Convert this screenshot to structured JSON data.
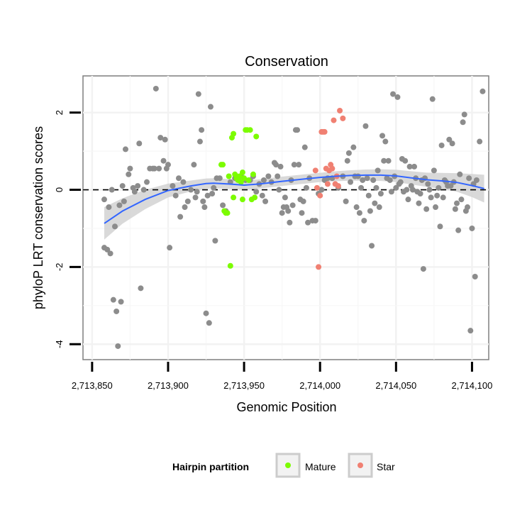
{
  "chart_data": {
    "type": "scatter",
    "title": "Conservation",
    "xlabel": "Genomic Position",
    "ylabel": "phyloP LRT conservation scores",
    "xlim": [
      2713844,
      2714111
    ],
    "ylim": [
      -4.4,
      2.95
    ],
    "xticks": [
      2713850,
      2713900,
      2713950,
      2714000,
      2714050,
      2714100
    ],
    "xtick_labels": [
      "2,713,850",
      "2,713,900",
      "2,713,950",
      "2,714,000",
      "2,714,050",
      "2,714,100"
    ],
    "yticks": [
      -4,
      -2,
      0,
      2
    ],
    "ytick_labels": [
      "-4",
      "-2",
      "0",
      "2"
    ],
    "reference_line": {
      "y": 0,
      "style": "dashed"
    },
    "legend": {
      "title": "Hairpin partition",
      "position": "bottom",
      "entries": [
        {
          "label": "Mature",
          "color": "#7CFC00"
        },
        {
          "label": "Star",
          "color": "#F08072"
        }
      ]
    },
    "colors": {
      "other": "#8c8c8c",
      "mature": "#7CFC00",
      "star": "#F08072",
      "smooth": "#3366FF",
      "band": "#d2d2d2"
    },
    "series": [
      {
        "name": "Other",
        "points": [
          [
            2713858,
            -1.5
          ],
          [
            2713860,
            -1.55
          ],
          [
            2713862,
            -1.65
          ],
          [
            2713858,
            -0.25
          ],
          [
            2713861,
            -0.45
          ],
          [
            2713863,
            0.0
          ],
          [
            2713864,
            -2.85
          ],
          [
            2713866,
            -3.15
          ],
          [
            2713867,
            -4.05
          ],
          [
            2713869,
            -2.9
          ],
          [
            2713865,
            -0.95
          ],
          [
            2713868,
            -0.4
          ],
          [
            2713870,
            0.1
          ],
          [
            2713871,
            -0.3
          ],
          [
            2713872,
            1.05
          ],
          [
            2713874,
            0.4
          ],
          [
            2713875,
            0.55
          ],
          [
            2713877,
            0.05
          ],
          [
            2713878,
            -0.05
          ],
          [
            2713880,
            0.1
          ],
          [
            2713881,
            1.2
          ],
          [
            2713882,
            -2.55
          ],
          [
            2713884,
            0.0
          ],
          [
            2713886,
            0.2
          ],
          [
            2713888,
            0.55
          ],
          [
            2713890,
            0.55
          ],
          [
            2713891,
            0.55
          ],
          [
            2713892,
            2.62
          ],
          [
            2713894,
            0.55
          ],
          [
            2713895,
            1.35
          ],
          [
            2713897,
            0.75
          ],
          [
            2713898,
            1.3
          ],
          [
            2713899,
            0.55
          ],
          [
            2713901,
            -1.5
          ],
          [
            2713900,
            0.65
          ],
          [
            2713903,
            0.1
          ],
          [
            2713905,
            -0.15
          ],
          [
            2713907,
            0.3
          ],
          [
            2713908,
            -0.7
          ],
          [
            2713910,
            0.2
          ],
          [
            2713911,
            -0.45
          ],
          [
            2713913,
            -0.3
          ],
          [
            2713915,
            0.0
          ],
          [
            2713917,
            0.65
          ],
          [
            2713918,
            -0.2
          ],
          [
            2713919,
            -0.05
          ],
          [
            2713920,
            2.48
          ],
          [
            2713921,
            1.25
          ],
          [
            2713922,
            1.55
          ],
          [
            2713923,
            -0.3
          ],
          [
            2713924,
            -0.45
          ],
          [
            2713925,
            -3.2
          ],
          [
            2713926,
            -0.15
          ],
          [
            2713927,
            -3.45
          ],
          [
            2713928,
            2.15
          ],
          [
            2713929,
            -0.1
          ],
          [
            2713930,
            0.05
          ],
          [
            2713931,
            -1.32
          ],
          [
            2713932,
            0.3
          ],
          [
            2713934,
            0.3
          ],
          [
            2713936,
            -0.4
          ],
          [
            2713938,
            -0.55
          ],
          [
            2713941,
            0.2
          ],
          [
            2713944,
            0.3
          ],
          [
            2713948,
            0.35
          ],
          [
            2713951,
            0.25
          ],
          [
            2713954,
            0.25
          ],
          [
            2713956,
            0.35
          ],
          [
            2713958,
            -0.05
          ],
          [
            2713960,
            0.15
          ],
          [
            2713962,
            -0.15
          ],
          [
            2713963,
            0.25
          ],
          [
            2713964,
            -0.3
          ],
          [
            2713966,
            0.35
          ],
          [
            2713968,
            0.2
          ],
          [
            2713970,
            0.7
          ],
          [
            2713971,
            0.65
          ],
          [
            2713972,
            0.35
          ],
          [
            2713973,
            0.0
          ],
          [
            2713974,
            0.6
          ],
          [
            2713975,
            -0.6
          ],
          [
            2713976,
            -0.45
          ],
          [
            2713977,
            -0.2
          ],
          [
            2713978,
            -0.45
          ],
          [
            2713979,
            -0.55
          ],
          [
            2713980,
            -0.85
          ],
          [
            2713981,
            0.25
          ],
          [
            2713982,
            -0.4
          ],
          [
            2713983,
            0.65
          ],
          [
            2713984,
            1.55
          ],
          [
            2713985,
            1.55
          ],
          [
            2713986,
            0.65
          ],
          [
            2713987,
            -0.25
          ],
          [
            2713988,
            -0.6
          ],
          [
            2713989,
            -0.3
          ],
          [
            2713990,
            1.1
          ],
          [
            2713991,
            0.05
          ],
          [
            2713992,
            -0.85
          ],
          [
            2713993,
            0.3
          ],
          [
            2713995,
            -0.8
          ],
          [
            2713997,
            -0.8
          ],
          [
            2713999,
            -0.1
          ],
          [
            2714001,
            0.0
          ],
          [
            2714003,
            0.25
          ],
          [
            2714005,
            0.3
          ],
          [
            2714008,
            0.3
          ],
          [
            2714012,
            0.05
          ],
          [
            2714015,
            0.35
          ],
          [
            2714017,
            -0.3
          ],
          [
            2714018,
            0.75
          ],
          [
            2714019,
            0.95
          ],
          [
            2714020,
            0.2
          ],
          [
            2714022,
            1.1
          ],
          [
            2714023,
            0.35
          ],
          [
            2714024,
            -0.45
          ],
          [
            2714025,
            0.35
          ],
          [
            2714026,
            -0.6
          ],
          [
            2714027,
            0.05
          ],
          [
            2714028,
            0.25
          ],
          [
            2714029,
            -0.8
          ],
          [
            2714030,
            1.65
          ],
          [
            2714031,
            0.3
          ],
          [
            2714032,
            -0.15
          ],
          [
            2714033,
            -0.55
          ],
          [
            2714034,
            -1.45
          ],
          [
            2714035,
            0.25
          ],
          [
            2714036,
            -0.35
          ],
          [
            2714037,
            0.05
          ],
          [
            2714038,
            0.5
          ],
          [
            2714039,
            -0.45
          ],
          [
            2714040,
            -0.1
          ],
          [
            2714041,
            1.4
          ],
          [
            2714042,
            0.75
          ],
          [
            2714043,
            1.25
          ],
          [
            2714044,
            0.3
          ],
          [
            2714045,
            0.75
          ],
          [
            2714046,
            0.25
          ],
          [
            2714047,
            -0.05
          ],
          [
            2714048,
            2.48
          ],
          [
            2714049,
            0.35
          ],
          [
            2714050,
            0.05
          ],
          [
            2714051,
            2.4
          ],
          [
            2714052,
            0.15
          ],
          [
            2714053,
            0.2
          ],
          [
            2714054,
            0.8
          ],
          [
            2714055,
            -0.05
          ],
          [
            2714056,
            0.75
          ],
          [
            2714057,
            0.0
          ],
          [
            2714058,
            -0.25
          ],
          [
            2714059,
            0.6
          ],
          [
            2714060,
            0.1
          ],
          [
            2714061,
            0.0
          ],
          [
            2714062,
            0.6
          ],
          [
            2714063,
            0.3
          ],
          [
            2714064,
            -0.05
          ],
          [
            2714065,
            -0.35
          ],
          [
            2714066,
            -0.1
          ],
          [
            2714067,
            0.25
          ],
          [
            2714068,
            -2.05
          ],
          [
            2714069,
            0.3
          ],
          [
            2714070,
            -0.5
          ],
          [
            2714071,
            0.15
          ],
          [
            2714072,
            0.0
          ],
          [
            2714073,
            -0.2
          ],
          [
            2714074,
            2.35
          ],
          [
            2714075,
            0.5
          ],
          [
            2714076,
            -0.45
          ],
          [
            2714077,
            -0.15
          ],
          [
            2714078,
            0.05
          ],
          [
            2714079,
            -0.95
          ],
          [
            2714080,
            1.15
          ],
          [
            2714081,
            -0.2
          ],
          [
            2714082,
            0.25
          ],
          [
            2714083,
            0.2
          ],
          [
            2714084,
            0.1
          ],
          [
            2714085,
            1.3
          ],
          [
            2714086,
            0.1
          ],
          [
            2714087,
            1.2
          ],
          [
            2714088,
            0.2
          ],
          [
            2714089,
            -0.5
          ],
          [
            2714090,
            -0.35
          ],
          [
            2714091,
            -1.05
          ],
          [
            2714092,
            0.4
          ],
          [
            2714093,
            -0.25
          ],
          [
            2714094,
            1.75
          ],
          [
            2714095,
            1.95
          ],
          [
            2714096,
            -0.55
          ],
          [
            2714097,
            -0.45
          ],
          [
            2714098,
            0.3
          ],
          [
            2714099,
            -3.65
          ],
          [
            2714100,
            -1.0
          ],
          [
            2714101,
            0.15
          ],
          [
            2714102,
            -2.25
          ],
          [
            2714103,
            0.25
          ],
          [
            2714105,
            1.25
          ],
          [
            2714107,
            2.55
          ]
        ]
      },
      {
        "name": "Mature",
        "points": [
          [
            2713935,
            0.65
          ],
          [
            2713936,
            0.65
          ],
          [
            2713937,
            -0.55
          ],
          [
            2713938,
            -0.6
          ],
          [
            2713939,
            -0.6
          ],
          [
            2713940,
            0.35
          ],
          [
            2713941,
            -1.97
          ],
          [
            2713942,
            1.35
          ],
          [
            2713943,
            1.45
          ],
          [
            2713944,
            0.4
          ],
          [
            2713945,
            0.3
          ],
          [
            2713946,
            0.25
          ],
          [
            2713947,
            0.35
          ],
          [
            2713948,
            0.2
          ],
          [
            2713949,
            0.45
          ],
          [
            2713950,
            0.3
          ],
          [
            2713951,
            1.55
          ],
          [
            2713952,
            1.55
          ],
          [
            2713953,
            0.25
          ],
          [
            2713954,
            1.55
          ],
          [
            2713955,
            -0.25
          ],
          [
            2713956,
            0.4
          ],
          [
            2713957,
            -0.2
          ],
          [
            2713958,
            1.38
          ],
          [
            2713943,
            -0.2
          ],
          [
            2713949,
            -0.25
          ]
        ]
      },
      {
        "name": "Star",
        "points": [
          [
            2713997,
            0.5
          ],
          [
            2713998,
            0.05
          ],
          [
            2713999,
            -2.0
          ],
          [
            2714000,
            -0.15
          ],
          [
            2714001,
            1.5
          ],
          [
            2714002,
            1.5
          ],
          [
            2714003,
            1.5
          ],
          [
            2714004,
            0.55
          ],
          [
            2714005,
            0.15
          ],
          [
            2714006,
            0.5
          ],
          [
            2714007,
            0.65
          ],
          [
            2714008,
            0.55
          ],
          [
            2714009,
            1.8
          ],
          [
            2714010,
            0.15
          ],
          [
            2714011,
            0.35
          ],
          [
            2714012,
            0.1
          ],
          [
            2714013,
            2.05
          ],
          [
            2714015,
            1.85
          ]
        ]
      }
    ],
    "smooth_curve": [
      [
        2713858,
        -0.87
      ],
      [
        2713870,
        -0.55
      ],
      [
        2713885,
        -0.25
      ],
      [
        2713900,
        -0.02
      ],
      [
        2713915,
        0.1
      ],
      [
        2713925,
        0.16
      ],
      [
        2713930,
        0.17
      ],
      [
        2713940,
        0.15
      ],
      [
        2713950,
        0.12
      ],
      [
        2713960,
        0.15
      ],
      [
        2713975,
        0.22
      ],
      [
        2713990,
        0.28
      ],
      [
        2714000,
        0.32
      ],
      [
        2714010,
        0.35
      ],
      [
        2714020,
        0.37
      ],
      [
        2714030,
        0.38
      ],
      [
        2714040,
        0.38
      ],
      [
        2714050,
        0.36
      ],
      [
        2714060,
        0.31
      ],
      [
        2714070,
        0.26
      ],
      [
        2714080,
        0.23
      ],
      [
        2714090,
        0.19
      ],
      [
        2714100,
        0.11
      ],
      [
        2714108,
        0.03
      ]
    ],
    "smooth_band_halfwidth": [
      [
        2713858,
        0.42
      ],
      [
        2713870,
        0.33
      ],
      [
        2713885,
        0.25
      ],
      [
        2713900,
        0.18
      ],
      [
        2713915,
        0.14
      ],
      [
        2713930,
        0.13
      ],
      [
        2713950,
        0.12
      ],
      [
        2713975,
        0.12
      ],
      [
        2714000,
        0.12
      ],
      [
        2714025,
        0.14
      ],
      [
        2714050,
        0.16
      ],
      [
        2714075,
        0.19
      ],
      [
        2714090,
        0.24
      ],
      [
        2714100,
        0.3
      ],
      [
        2714108,
        0.36
      ]
    ]
  }
}
